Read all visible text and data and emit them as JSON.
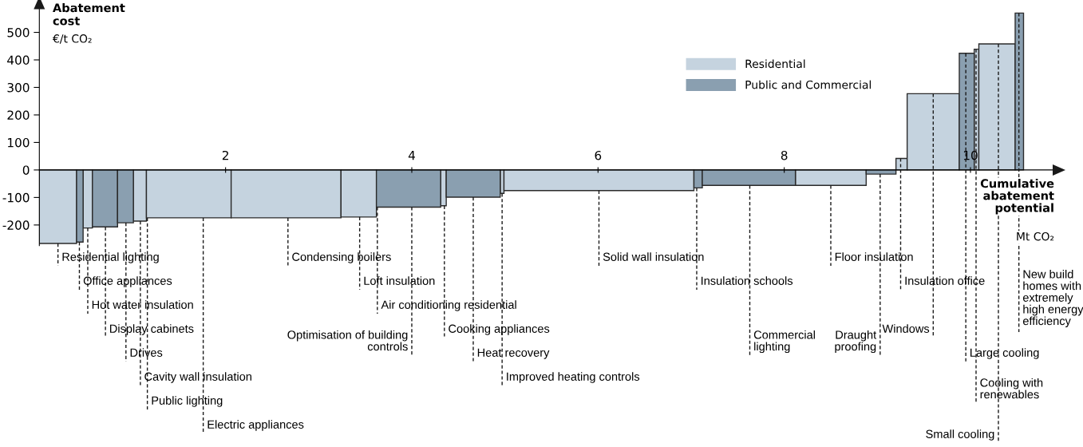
{
  "chart_data": {
    "type": "histogram",
    "ylabel": "Abatement\ncost\n€/t CO₂",
    "xlabel": "Cumulative\nabatement\npotential\nMt CO₂",
    "bins": [
      0,
      0.4,
      0.47,
      0.57,
      0.84,
      1.01,
      1.15,
      2.06,
      3.24,
      3.62,
      4.31,
      4.37,
      4.95,
      4.99,
      7.03,
      7.12,
      8.12,
      8.88,
      9.2,
      9.32,
      9.88,
      10.04,
      10.09,
      10.48,
      10.57
    ],
    "series": [
      {
        "name": "Residential",
        "color": "#c5d3df",
        "values": [
          -267,
          null,
          -211,
          null,
          null,
          -186,
          -174,
          -174,
          -171,
          null,
          -130,
          null,
          -85,
          -75,
          null,
          null,
          -56,
          null,
          42,
          277,
          null,
          439,
          458,
          null
        ]
      },
      {
        "name": "Public and Commercial",
        "color": "#8a9fb0",
        "values": [
          null,
          -262,
          null,
          -207,
          -192,
          null,
          null,
          null,
          null,
          -135,
          null,
          -99,
          null,
          null,
          -65,
          -56,
          null,
          -15,
          null,
          null,
          424,
          null,
          null,
          570
        ]
      }
    ],
    "xlim": [
      0,
      10.9
    ],
    "ylim": [
      -275,
      590
    ],
    "xticks": [
      2,
      4,
      6,
      8,
      10
    ],
    "yticks": [
      -200,
      -100,
      0,
      100,
      200,
      300,
      400,
      500
    ],
    "legend": "top right",
    "annotations": [
      {
        "text": "Residential lighting",
        "x": 0.2,
        "y": -267
      },
      {
        "text": "Office appliances",
        "x": 0.43,
        "y": -262
      },
      {
        "text": "Hot water insulation",
        "x": 0.52,
        "y": -211
      },
      {
        "text": "Display cabinets",
        "x": 0.71,
        "y": -207
      },
      {
        "text": "Drives",
        "x": 0.93,
        "y": -192
      },
      {
        "text": "Cavity wall insulation",
        "x": 1.085,
        "y": -186
      },
      {
        "text": "Public lighting",
        "x": 1.16,
        "y": -174
      },
      {
        "text": "Electric appliances",
        "x": 1.76,
        "y": -174
      },
      {
        "text": "Condensing boilers",
        "x": 2.67,
        "y": -174
      },
      {
        "text": "Loft insulation",
        "x": 3.44,
        "y": -171
      },
      {
        "text": "Air conditioning residential",
        "x": 3.63,
        "y": -135
      },
      {
        "text": "Optimisation of building\ncontrols",
        "x": 4.0,
        "y": -135
      },
      {
        "text": "Cooking appliances",
        "x": 4.35,
        "y": -130
      },
      {
        "text": "Heat recovery",
        "x": 4.66,
        "y": -99
      },
      {
        "text": "Improved heating controls",
        "x": 4.97,
        "y": -85
      },
      {
        "text": "Solid wall insulation",
        "x": 6.01,
        "y": -75
      },
      {
        "text": "Insulation schools",
        "x": 7.06,
        "y": -65
      },
      {
        "text": "Commercial\nlighting",
        "x": 7.63,
        "y": -56
      },
      {
        "text": "Floor insulation",
        "x": 8.5,
        "y": -56
      },
      {
        "text": "Draught\nproofing",
        "x": 9.03,
        "y": -15
      },
      {
        "text": "Insulation office",
        "x": 9.25,
        "y": 42
      },
      {
        "text": "Windows",
        "x": 9.6,
        "y": 277
      },
      {
        "text": "Large cooling",
        "x": 9.95,
        "y": 424
      },
      {
        "text": "Cooling with\nrenewables",
        "x": 10.06,
        "y": 439
      },
      {
        "text": "Small cooling",
        "x": 10.3,
        "y": 458
      },
      {
        "text": "New build\nhomes with\nextremely\nhigh energy\nefficiency",
        "x": 10.52,
        "y": 570
      }
    ]
  }
}
